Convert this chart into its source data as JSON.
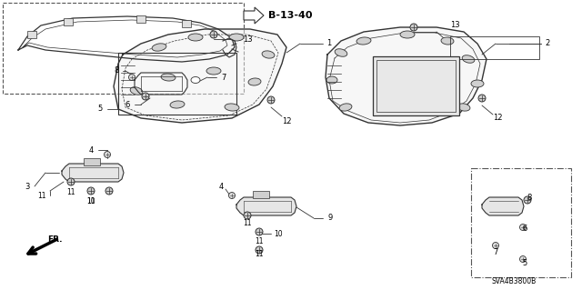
{
  "bg_color": "#ffffff",
  "line_color": "#333333",
  "text_color": "#000000",
  "ref_label": "B-13-40",
  "catalog_num": "SVA4B3800B",
  "figsize": [
    6.4,
    3.19
  ],
  "dpi": 100
}
